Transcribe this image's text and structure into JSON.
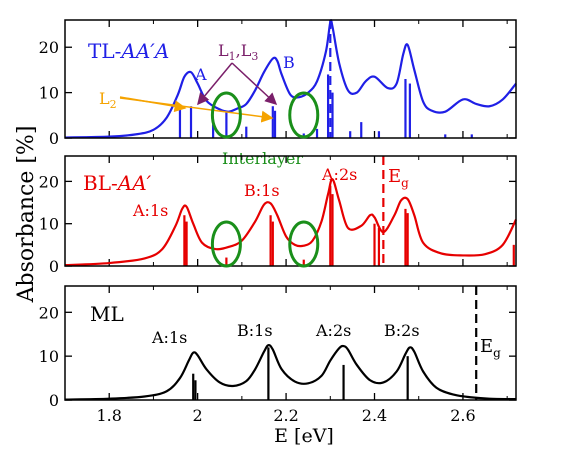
{
  "figure": {
    "ylabel": "Absorbance [%]",
    "xlabel": "E [eV]",
    "x_tick_labels": [
      "1.8",
      "2",
      "2.2",
      "2.4",
      "2.6"
    ]
  },
  "chart_data": [
    {
      "type": "line",
      "panel": "top",
      "label": "TL-AA′A",
      "label_parts": {
        "prefix": "TL-",
        "italic": "AA′A"
      },
      "color": "#1f1fe6",
      "xlim": [
        1.7,
        2.72
      ],
      "ylim": [
        0,
        26
      ],
      "yticks": [
        0,
        10,
        20
      ],
      "x": [
        1.7,
        1.8,
        1.86,
        1.9,
        1.93,
        1.955,
        1.97,
        1.985,
        2.0,
        2.02,
        2.05,
        2.07,
        2.09,
        2.11,
        2.13,
        2.15,
        2.17,
        2.18,
        2.19,
        2.21,
        2.23,
        2.25,
        2.27,
        2.29,
        2.3,
        2.305,
        2.32,
        2.34,
        2.36,
        2.38,
        2.4,
        2.43,
        2.45,
        2.465,
        2.475,
        2.49,
        2.51,
        2.53,
        2.56,
        2.6,
        2.63,
        2.66,
        2.69,
        2.72
      ],
      "y": [
        0.1,
        0.3,
        0.8,
        1.8,
        4.5,
        9.5,
        13.5,
        14.5,
        12.0,
        8.2,
        6.3,
        5.8,
        6.5,
        7.5,
        10.5,
        14.5,
        17.5,
        17.0,
        14.0,
        9.5,
        9.0,
        10.0,
        12.5,
        19.0,
        25.5,
        24.5,
        16.5,
        10.5,
        10.0,
        12.5,
        13.5,
        11.0,
        12.0,
        18.5,
        20.5,
        15.0,
        8.0,
        6.0,
        5.8,
        8.5,
        7.5,
        7.0,
        8.5,
        12.0
      ],
      "stick_x": [
        1.96,
        1.985,
        2.035,
        2.065,
        2.11,
        2.17,
        2.175,
        2.24,
        2.27,
        2.295,
        2.305,
        2.345,
        2.37,
        2.41,
        2.47,
        2.48,
        2.56,
        2.62
      ],
      "stick_y": [
        6.5,
        7.0,
        3.0,
        6.0,
        2.5,
        7.0,
        6.0,
        1.0,
        2.0,
        14.0,
        10.0,
        1.5,
        3.5,
        1.5,
        13.0,
        12.0,
        0.8,
        0.8
      ],
      "dashed_line_x": 2.3,
      "annotations": {
        "a": "A",
        "b": "B",
        "l2": "L",
        "l2_sub": "2",
        "l13_1": "L",
        "l13_1_sub": "1",
        "l13_sep": ",",
        "l13_2": "L",
        "l13_2_sub": "3"
      },
      "interlayer_label": "Interlayer",
      "circles_x": [
        2.065,
        2.24
      ]
    },
    {
      "type": "line",
      "panel": "middle",
      "label": "BL-AA′",
      "label_parts": {
        "prefix": "BL-",
        "italic": "AA′"
      },
      "color": "#e60000",
      "xlim": [
        1.7,
        2.72
      ],
      "ylim": [
        0,
        26
      ],
      "yticks": [
        0,
        10,
        20
      ],
      "x": [
        1.7,
        1.8,
        1.88,
        1.92,
        1.95,
        1.965,
        1.975,
        1.99,
        2.01,
        2.04,
        2.07,
        2.1,
        2.13,
        2.15,
        2.165,
        2.18,
        2.2,
        2.22,
        2.24,
        2.26,
        2.28,
        2.295,
        2.305,
        2.32,
        2.34,
        2.37,
        2.39,
        2.4,
        2.42,
        2.445,
        2.46,
        2.475,
        2.49,
        2.51,
        2.55,
        2.6,
        2.65,
        2.69,
        2.72
      ],
      "y": [
        0.2,
        0.7,
        1.8,
        4.0,
        9.5,
        13.5,
        14.0,
        10.0,
        5.5,
        4.0,
        4.5,
        6.0,
        10.5,
        14.5,
        14.8,
        12.0,
        7.0,
        5.0,
        4.8,
        6.0,
        10.5,
        17.0,
        20.5,
        15.5,
        9.0,
        9.5,
        12.0,
        11.5,
        8.0,
        12.0,
        15.5,
        15.8,
        12.0,
        5.5,
        3.0,
        2.5,
        2.8,
        5.0,
        11.0
      ],
      "stick_x": [
        1.97,
        1.975,
        2.065,
        2.165,
        2.17,
        2.24,
        2.3,
        2.305,
        2.4,
        2.41,
        2.47,
        2.475,
        2.715
      ],
      "stick_y": [
        12.0,
        10.5,
        2.0,
        12.0,
        10.5,
        1.5,
        19.0,
        17.0,
        10.0,
        9.0,
        13.5,
        12.5,
        5.0
      ],
      "dashed_line_x": 2.42,
      "annotations": {
        "a1s": "A:1s",
        "b1s": "B:1s",
        "a2s": "A:2s",
        "eg": "E",
        "eg_sub": "g"
      },
      "circles_x": [
        2.065,
        2.24
      ]
    },
    {
      "type": "line",
      "panel": "bottom",
      "label": "ML",
      "color": "#000000",
      "xlim": [
        1.7,
        2.72
      ],
      "ylim": [
        0,
        26
      ],
      "yticks": [
        0,
        10,
        20
      ],
      "x": [
        1.7,
        1.8,
        1.88,
        1.93,
        1.96,
        1.98,
        1.99,
        2.0,
        2.02,
        2.05,
        2.08,
        2.11,
        2.13,
        2.15,
        2.16,
        2.17,
        2.19,
        2.22,
        2.25,
        2.28,
        2.3,
        2.32,
        2.33,
        2.34,
        2.36,
        2.39,
        2.42,
        2.45,
        2.47,
        2.48,
        2.49,
        2.51,
        2.54,
        2.58,
        2.62,
        2.66,
        2.72
      ],
      "y": [
        0.1,
        0.3,
        0.8,
        2.0,
        5.0,
        9.0,
        10.8,
        10.2,
        7.0,
        4.0,
        3.2,
        4.3,
        7.0,
        11.0,
        12.5,
        11.5,
        7.0,
        4.2,
        3.8,
        5.5,
        9.0,
        11.8,
        12.3,
        11.5,
        8.0,
        4.5,
        4.0,
        6.5,
        10.5,
        12.0,
        11.0,
        6.5,
        2.8,
        1.2,
        0.6,
        0.3,
        0.2
      ],
      "stick_x": [
        1.99,
        1.995,
        2.16,
        2.33,
        2.475
      ],
      "stick_y": [
        6.0,
        4.5,
        12.0,
        8.0,
        10.0
      ],
      "dashed_line_x": 2.63,
      "annotations": {
        "a1s": "A:1s",
        "b1s": "B:1s",
        "a2s": "A:2s",
        "b2s": "B:2s",
        "eg": "E",
        "eg_sub": "g"
      }
    }
  ],
  "colors": {
    "arrow_orange": "#f5a300",
    "arrow_purple": "#7a1f6a",
    "circle_green": "#1a8f1a"
  }
}
